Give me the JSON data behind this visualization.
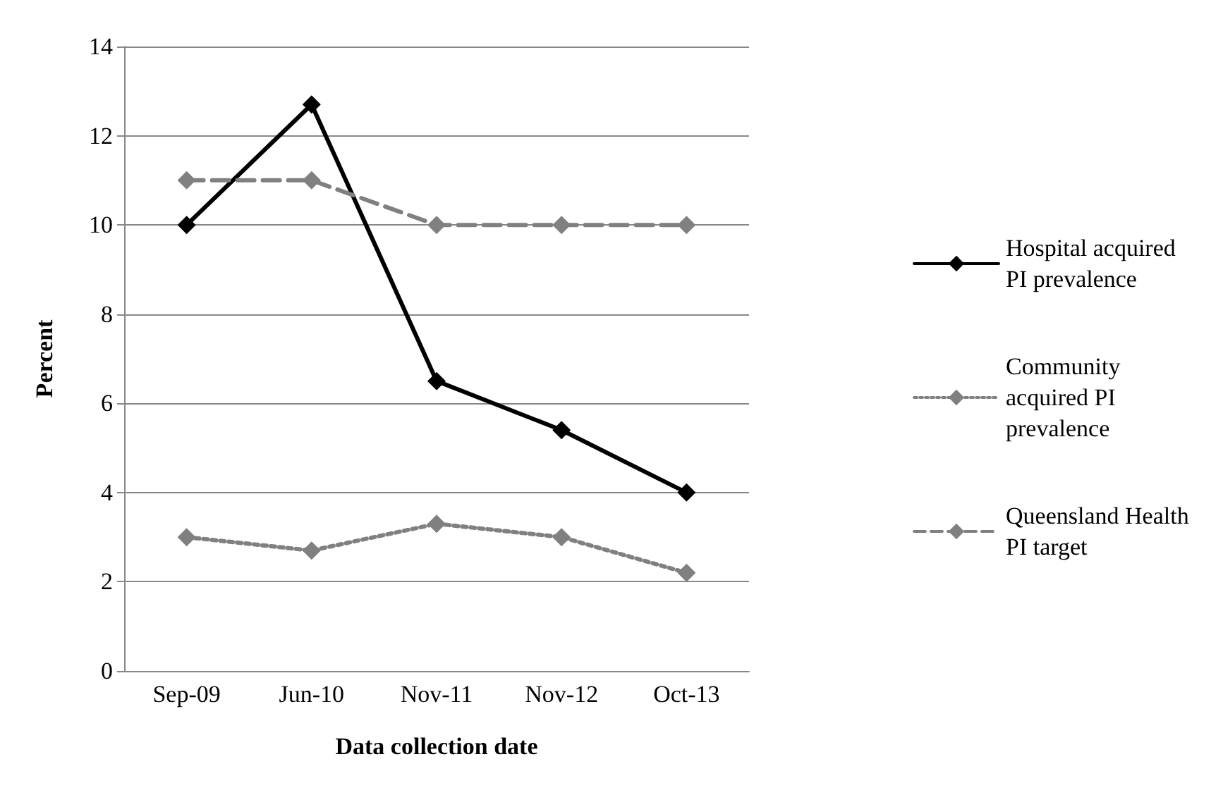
{
  "chart_data": {
    "type": "line",
    "xlabel": "Data collection date",
    "ylabel": "Percent",
    "categories": [
      "Sep-09",
      "Jun-10",
      "Nov-11",
      "Nov-12",
      "Oct-13"
    ],
    "series": [
      {
        "name": "Hospital acquired PI prevalence",
        "color": "#000000",
        "line_style": "solid",
        "values": [
          10,
          12.7,
          6.5,
          5.4,
          4
        ]
      },
      {
        "name": "Community acquired PI prevalence",
        "color": "#808080",
        "line_style": "dotted",
        "values": [
          3,
          2.7,
          3.3,
          3,
          2.2
        ]
      },
      {
        "name": "Queensland Health PI target",
        "color": "#808080",
        "line_style": "dashed",
        "values": [
          11,
          11,
          10,
          10,
          10
        ]
      }
    ],
    "ylim": [
      0,
      14
    ],
    "yticks": [
      0,
      2,
      4,
      6,
      8,
      10,
      12,
      14
    ],
    "grid": "y",
    "legend": "right",
    "marker": "diamond"
  }
}
